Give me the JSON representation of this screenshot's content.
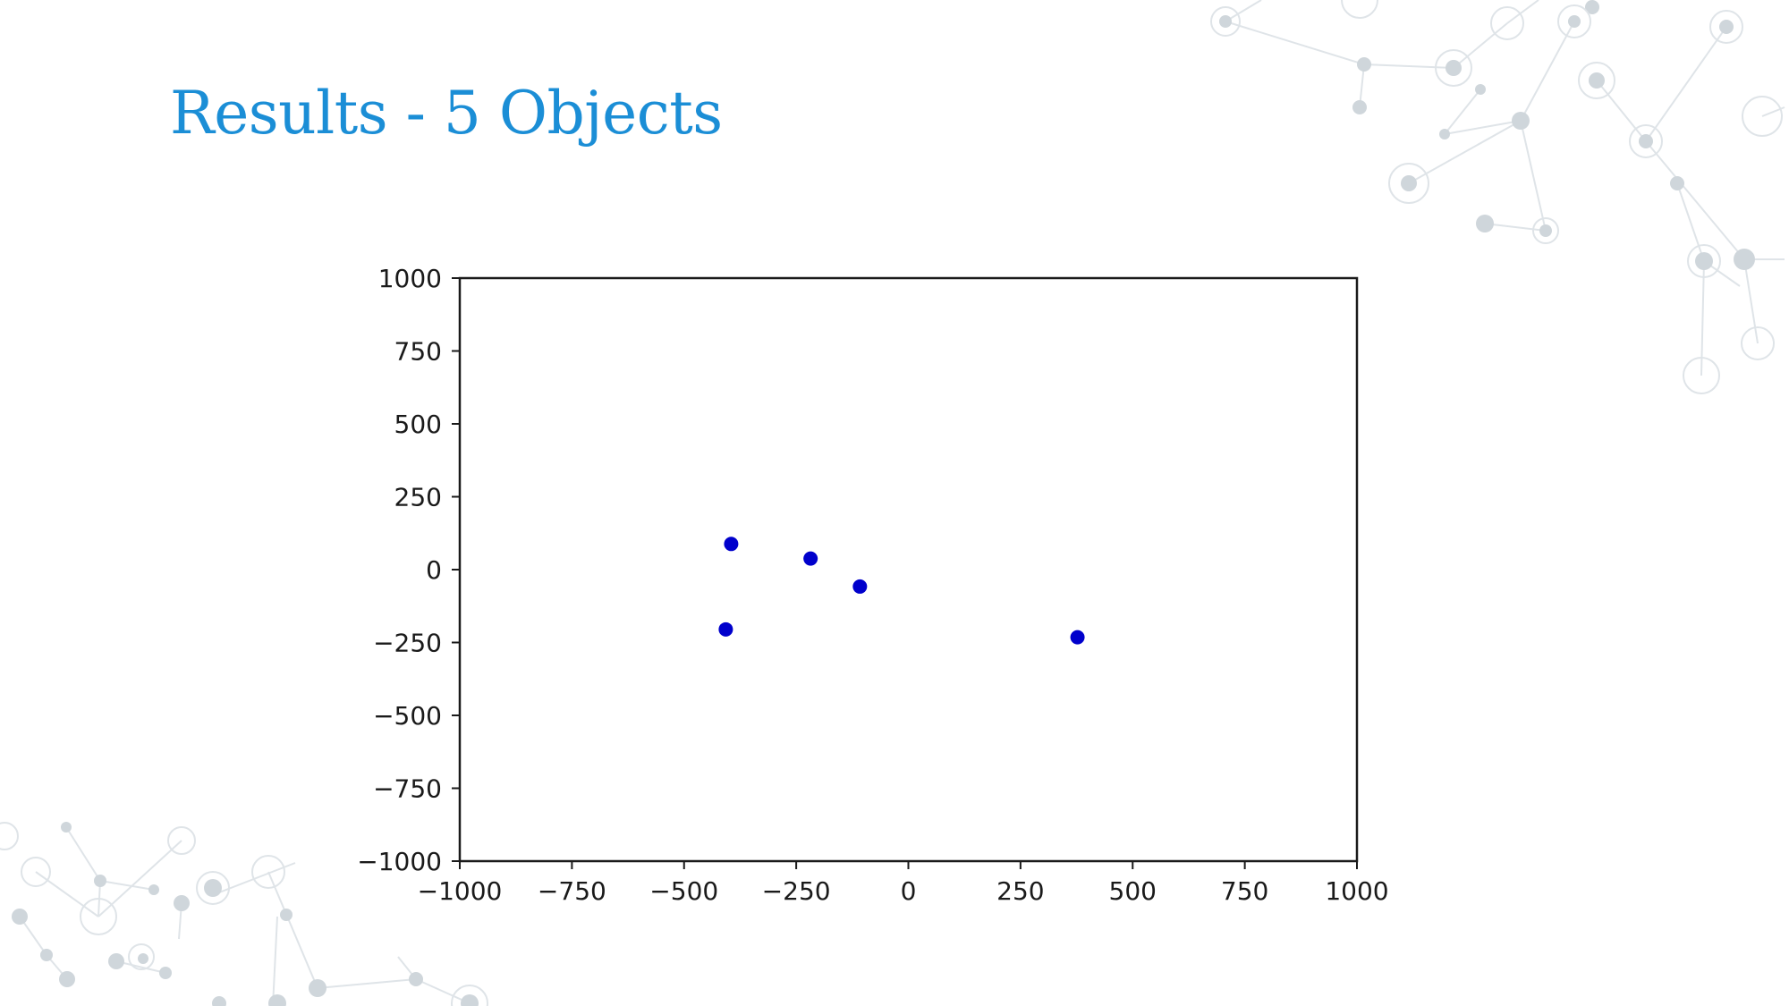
{
  "slide": {
    "title": "Results - 5 Objects",
    "title_color": "#1b8ed6",
    "decoration": "molecule-network-pattern"
  },
  "chart_data": {
    "type": "scatter",
    "title": "",
    "xlabel": "",
    "ylabel": "",
    "xlim": [
      -1000,
      1000
    ],
    "ylim": [
      -1000,
      1000
    ],
    "xticks": [
      -1000,
      -750,
      -500,
      -250,
      0,
      250,
      500,
      750,
      1000
    ],
    "yticks": [
      -1000,
      -750,
      -500,
      -250,
      0,
      250,
      500,
      750,
      1000
    ],
    "grid": false,
    "marker_color": "#0000cc",
    "series": [
      {
        "points": [
          {
            "x": -395,
            "y": 88
          },
          {
            "x": -218,
            "y": 38
          },
          {
            "x": -108,
            "y": -58
          },
          {
            "x": -407,
            "y": -205
          },
          {
            "x": 377,
            "y": -232
          }
        ]
      }
    ]
  }
}
